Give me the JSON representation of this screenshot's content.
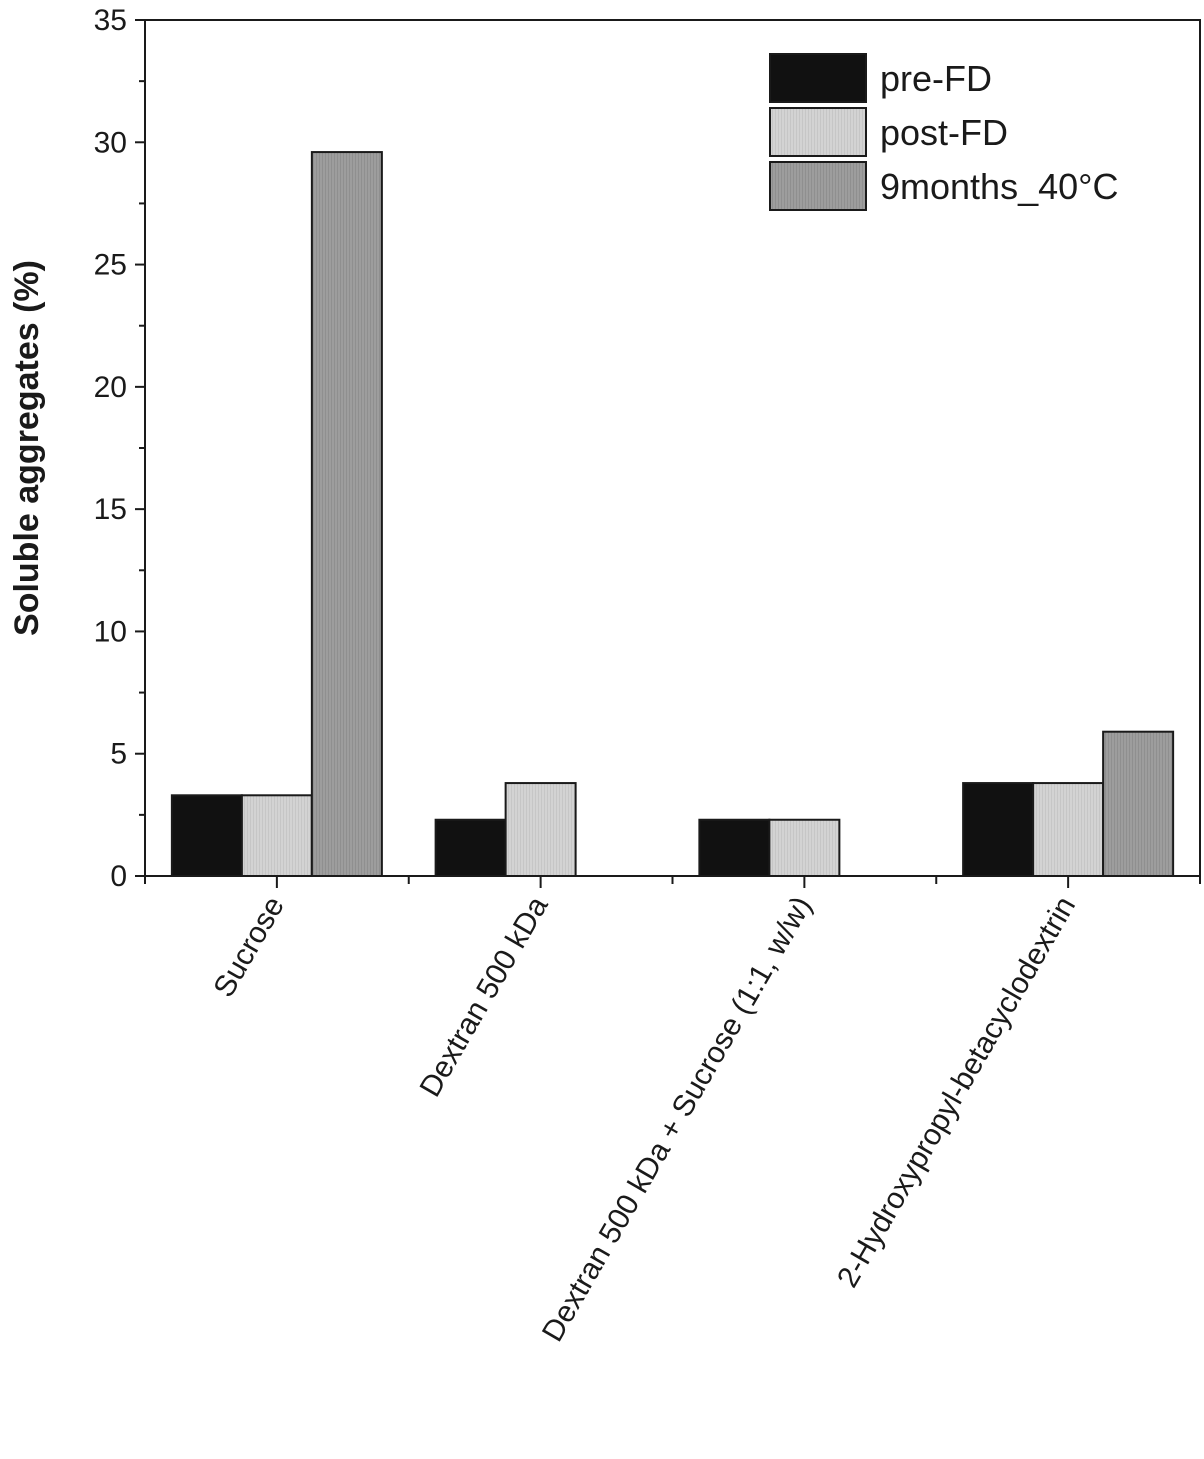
{
  "chart_data": {
    "type": "bar",
    "title": "",
    "xlabel": "",
    "ylabel": "Soluble aggregates (%)",
    "ylim": [
      0,
      35
    ],
    "yticks": [
      "0",
      "5",
      "10",
      "15",
      "20",
      "25",
      "30",
      "35"
    ],
    "categories": [
      "Sucrose",
      "Dextran 500 kDa",
      "Dextran 500 kDa + Sucrose (1:1, w/w)",
      "2-Hydroxypropyl-betacyclodextrin"
    ],
    "series": [
      {
        "name": "pre-FD",
        "color": "#111111",
        "values": [
          3.3,
          2.3,
          2.3,
          3.8
        ]
      },
      {
        "name": "post-FD",
        "color": "#d3d3d3",
        "values": [
          3.3,
          3.8,
          2.3,
          3.8
        ]
      },
      {
        "name": "9months_40°C",
        "color": "#9b9b9b",
        "values": [
          29.6,
          null,
          null,
          5.9
        ]
      }
    ],
    "legend_position": "top-right",
    "grid": false
  }
}
